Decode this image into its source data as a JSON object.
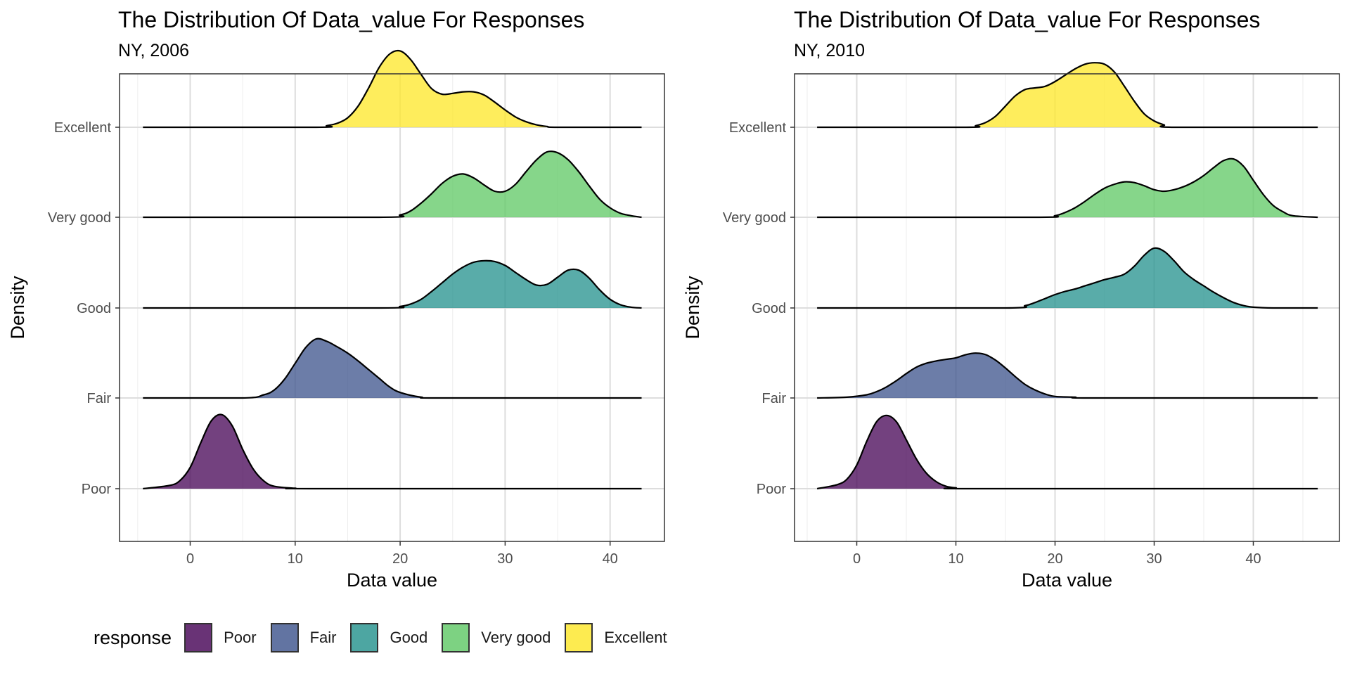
{
  "legend": {
    "title": "response",
    "items": [
      {
        "label": "Poor",
        "color": "#440154"
      },
      {
        "label": "Fair",
        "color": "#3B528B"
      },
      {
        "label": "Good",
        "color": "#21908C"
      },
      {
        "label": "Very good",
        "color": "#5DC863"
      },
      {
        "label": "Excellent",
        "color": "#FDE725"
      }
    ]
  },
  "chart_data": [
    {
      "type": "ridgeline",
      "title": "The Distribution Of Data_value For Responses",
      "subtitle": "NY, 2006",
      "xlabel": "Data value",
      "ylabel": "Density",
      "xlim": [
        -5,
        43
      ],
      "xticks": [
        0,
        10,
        20,
        30,
        40
      ],
      "grid": true,
      "categories": [
        "Poor",
        "Fair",
        "Good",
        "Very good",
        "Excellent"
      ],
      "series": [
        {
          "name": "Poor",
          "x": [
            -4.5,
            -2,
            -1,
            0,
            1,
            2,
            3,
            4,
            5,
            6,
            7,
            8,
            10,
            12,
            43
          ],
          "density": [
            0,
            0.04,
            0.1,
            0.27,
            0.58,
            0.86,
            0.94,
            0.8,
            0.5,
            0.25,
            0.1,
            0.03,
            0.005,
            0,
            0
          ]
        },
        {
          "name": "Fair",
          "x": [
            -4.5,
            5,
            7,
            8,
            9,
            10,
            11,
            12,
            13,
            14,
            15,
            16,
            17,
            18,
            19,
            20,
            22,
            24,
            43
          ],
          "density": [
            0,
            0,
            0.04,
            0.1,
            0.24,
            0.44,
            0.64,
            0.75,
            0.72,
            0.65,
            0.57,
            0.47,
            0.36,
            0.25,
            0.14,
            0.07,
            0.01,
            0,
            0
          ]
        },
        {
          "name": "Good",
          "x": [
            -4.5,
            18,
            20,
            21,
            22,
            23,
            24,
            25,
            26,
            27,
            28,
            29,
            30,
            31,
            32,
            33,
            34,
            35,
            36,
            37,
            38,
            39,
            40,
            41,
            42,
            43
          ],
          "density": [
            0,
            0,
            0.02,
            0.05,
            0.11,
            0.21,
            0.32,
            0.43,
            0.52,
            0.58,
            0.6,
            0.59,
            0.54,
            0.45,
            0.36,
            0.29,
            0.3,
            0.39,
            0.48,
            0.48,
            0.38,
            0.23,
            0.11,
            0.04,
            0.01,
            0
          ]
        },
        {
          "name": "Very good",
          "x": [
            -4.5,
            18,
            20,
            21,
            22,
            23,
            24,
            25,
            26,
            27,
            28,
            29,
            30,
            31,
            32,
            33,
            34,
            35,
            36,
            37,
            38,
            39,
            40,
            41,
            42,
            43
          ],
          "density": [
            0,
            0,
            0.03,
            0.08,
            0.18,
            0.3,
            0.43,
            0.52,
            0.55,
            0.5,
            0.41,
            0.33,
            0.33,
            0.42,
            0.58,
            0.73,
            0.83,
            0.82,
            0.73,
            0.58,
            0.4,
            0.23,
            0.12,
            0.05,
            0.02,
            0
          ]
        },
        {
          "name": "Excellent",
          "x": [
            -4.5,
            12,
            13,
            14,
            15,
            16,
            17,
            18,
            19,
            20,
            21,
            22,
            23,
            24,
            25,
            26,
            27,
            28,
            29,
            30,
            31,
            32,
            33,
            34,
            35,
            43
          ],
          "density": [
            0,
            0,
            0.02,
            0.05,
            0.12,
            0.27,
            0.5,
            0.76,
            0.93,
            0.97,
            0.86,
            0.67,
            0.49,
            0.42,
            0.43,
            0.45,
            0.45,
            0.41,
            0.32,
            0.22,
            0.13,
            0.07,
            0.03,
            0.01,
            0,
            0
          ]
        }
      ]
    },
    {
      "type": "ridgeline",
      "title": "The Distribution Of Data_value For Responses",
      "subtitle": "NY, 2010",
      "xlabel": "Data value",
      "ylabel": "Density",
      "xlim": [
        -5,
        47
      ],
      "xticks": [
        0,
        10,
        20,
        30,
        40
      ],
      "grid": true,
      "categories": [
        "Poor",
        "Fair",
        "Good",
        "Very good",
        "Excellent"
      ],
      "series": [
        {
          "name": "Poor",
          "x": [
            -4,
            -2,
            -1,
            0,
            1,
            2,
            3,
            4,
            5,
            6,
            7,
            8,
            9,
            10,
            12,
            46.5
          ],
          "density": [
            0,
            0.05,
            0.12,
            0.3,
            0.6,
            0.85,
            0.93,
            0.85,
            0.62,
            0.38,
            0.2,
            0.09,
            0.03,
            0.01,
            0,
            0
          ]
        },
        {
          "name": "Fair",
          "x": [
            -4,
            -1,
            1,
            2,
            3,
            4,
            5,
            6,
            7,
            8,
            9,
            10,
            11,
            12,
            13,
            14,
            15,
            16,
            17,
            18,
            19,
            20,
            22,
            24,
            46.5
          ],
          "density": [
            0,
            0.01,
            0.04,
            0.08,
            0.14,
            0.22,
            0.31,
            0.39,
            0.44,
            0.47,
            0.49,
            0.51,
            0.55,
            0.57,
            0.55,
            0.48,
            0.38,
            0.27,
            0.17,
            0.1,
            0.05,
            0.02,
            0.01,
            0,
            0
          ]
        },
        {
          "name": "Good",
          "x": [
            -4,
            15,
            17,
            18,
            19,
            20,
            21,
            22,
            23,
            24,
            25,
            26,
            27,
            28,
            29,
            30,
            31,
            32,
            33,
            34,
            35,
            36,
            37,
            38,
            39,
            40,
            42,
            46.5
          ],
          "density": [
            0,
            0,
            0.03,
            0.07,
            0.12,
            0.17,
            0.21,
            0.24,
            0.28,
            0.32,
            0.36,
            0.39,
            0.43,
            0.53,
            0.67,
            0.76,
            0.72,
            0.6,
            0.46,
            0.36,
            0.28,
            0.2,
            0.13,
            0.07,
            0.03,
            0.01,
            0,
            0
          ]
        },
        {
          "name": "Very good",
          "x": [
            -4,
            18,
            20,
            21,
            22,
            23,
            24,
            25,
            26,
            27,
            28,
            29,
            30,
            31,
            32,
            33,
            34,
            35,
            36,
            37,
            38,
            39,
            40,
            41,
            42,
            43,
            44,
            46.5
          ],
          "density": [
            0,
            0,
            0.02,
            0.06,
            0.12,
            0.2,
            0.29,
            0.37,
            0.42,
            0.45,
            0.44,
            0.4,
            0.35,
            0.33,
            0.35,
            0.39,
            0.45,
            0.53,
            0.63,
            0.72,
            0.74,
            0.65,
            0.47,
            0.29,
            0.15,
            0.07,
            0.02,
            0
          ]
        },
        {
          "name": "Excellent",
          "x": [
            -4,
            11,
            12,
            13,
            14,
            15,
            16,
            17,
            18,
            19,
            20,
            21,
            22,
            23,
            24,
            25,
            26,
            27,
            28,
            29,
            30,
            31,
            32,
            46.5
          ],
          "density": [
            0,
            0,
            0.02,
            0.06,
            0.14,
            0.27,
            0.4,
            0.48,
            0.5,
            0.52,
            0.58,
            0.66,
            0.74,
            0.8,
            0.82,
            0.8,
            0.7,
            0.52,
            0.33,
            0.17,
            0.08,
            0.03,
            0,
            0
          ]
        }
      ]
    }
  ]
}
